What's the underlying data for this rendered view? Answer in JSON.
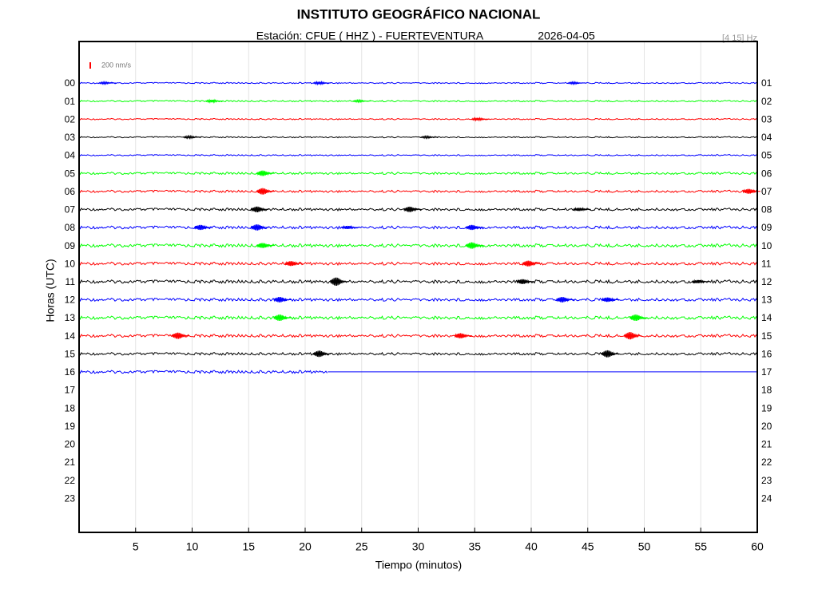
{
  "chart_data": {
    "type": "helicorder",
    "title": "INSTITUTO GEOGRÁFICO NACIONAL",
    "station": "Estación:  CFUE ( HHZ ) - FUERTEVENTURA",
    "date": "2026-04-05",
    "filter": "[4 15] Hz",
    "scale_label": "200 nm/s",
    "scale_value": 200,
    "scale_color": "#ff0000",
    "xlabel": "Tiempo (minutos)",
    "ylabel": "Horas (UTC)",
    "xlim": [
      0,
      60
    ],
    "xticks": [
      5,
      10,
      15,
      20,
      25,
      30,
      35,
      40,
      45,
      50,
      55,
      60
    ],
    "grid": true,
    "hours_left": [
      "00",
      "01",
      "02",
      "03",
      "04",
      "05",
      "06",
      "07",
      "08",
      "09",
      "10",
      "11",
      "12",
      "13",
      "14",
      "15",
      "16",
      "17",
      "18",
      "19",
      "20",
      "21",
      "22",
      "23"
    ],
    "hours_right": [
      "01",
      "02",
      "03",
      "04",
      "05",
      "06",
      "07",
      "08",
      "09",
      "10",
      "11",
      "12",
      "13",
      "14",
      "15",
      "16",
      "17",
      "18",
      "19",
      "20",
      "21",
      "22",
      "23",
      "24"
    ],
    "traces": [
      {
        "color": "#0000ff",
        "end": 60,
        "noise": 40,
        "bursts": [
          {
            "minute": 2.5,
            "amplitude": 60
          },
          {
            "minute": 21.5,
            "amplitude": 80
          },
          {
            "minute": 44,
            "amplitude": 60
          }
        ]
      },
      {
        "color": "#00ff00",
        "end": 60,
        "noise": 45,
        "bursts": [
          {
            "minute": 12,
            "amplitude": 80
          },
          {
            "minute": 25,
            "amplitude": 60
          }
        ]
      },
      {
        "color": "#ff0000",
        "end": 60,
        "noise": 40,
        "bursts": [
          {
            "minute": 35.5,
            "amplitude": 80
          }
        ]
      },
      {
        "color": "#000000",
        "end": 60,
        "noise": 40,
        "bursts": [
          {
            "minute": 10,
            "amplitude": 70
          },
          {
            "minute": 31,
            "amplitude": 60
          }
        ]
      },
      {
        "color": "#0000ff",
        "end": 60,
        "noise": 40,
        "bursts": []
      },
      {
        "color": "#00ff00",
        "end": 60,
        "noise": 70,
        "bursts": [
          {
            "minute": 16.5,
            "amplitude": 170
          }
        ]
      },
      {
        "color": "#ff0000",
        "end": 60,
        "noise": 70,
        "bursts": [
          {
            "minute": 16.5,
            "amplitude": 200
          },
          {
            "minute": 59.5,
            "amplitude": 150
          }
        ]
      },
      {
        "color": "#000000",
        "end": 60,
        "noise": 80,
        "bursts": [
          {
            "minute": 16,
            "amplitude": 180
          },
          {
            "minute": 29.5,
            "amplitude": 170
          },
          {
            "minute": 44.5,
            "amplitude": 100
          }
        ]
      },
      {
        "color": "#0000ff",
        "end": 60,
        "noise": 90,
        "bursts": [
          {
            "minute": 11,
            "amplitude": 160
          },
          {
            "minute": 16,
            "amplitude": 190
          },
          {
            "minute": 24,
            "amplitude": 100
          },
          {
            "minute": 35,
            "amplitude": 160
          }
        ]
      },
      {
        "color": "#00ff00",
        "end": 60,
        "noise": 100,
        "bursts": [
          {
            "minute": 16.5,
            "amplitude": 160
          },
          {
            "minute": 35,
            "amplitude": 200
          }
        ]
      },
      {
        "color": "#ff0000",
        "end": 60,
        "noise": 90,
        "bursts": [
          {
            "minute": 19,
            "amplitude": 150
          },
          {
            "minute": 40,
            "amplitude": 180
          }
        ]
      },
      {
        "color": "#000000",
        "end": 60,
        "noise": 100,
        "bursts": [
          {
            "minute": 23,
            "amplitude": 260
          },
          {
            "minute": 39.5,
            "amplitude": 150
          },
          {
            "minute": 55,
            "amplitude": 100
          }
        ]
      },
      {
        "color": "#0000ff",
        "end": 60,
        "noise": 90,
        "bursts": [
          {
            "minute": 18,
            "amplitude": 170
          },
          {
            "minute": 43,
            "amplitude": 170
          },
          {
            "minute": 47,
            "amplitude": 140
          }
        ]
      },
      {
        "color": "#00ff00",
        "end": 60,
        "noise": 100,
        "bursts": [
          {
            "minute": 18,
            "amplitude": 200
          },
          {
            "minute": 49.5,
            "amplitude": 200
          }
        ]
      },
      {
        "color": "#ff0000",
        "end": 60,
        "noise": 90,
        "bursts": [
          {
            "minute": 9,
            "amplitude": 200
          },
          {
            "minute": 34,
            "amplitude": 160
          },
          {
            "minute": 49,
            "amplitude": 230
          }
        ]
      },
      {
        "color": "#000000",
        "end": 60,
        "noise": 80,
        "bursts": [
          {
            "minute": 21.5,
            "amplitude": 200
          },
          {
            "minute": 47,
            "amplitude": 220
          }
        ]
      },
      {
        "color": "#0000ff",
        "end": 22,
        "noise": 90,
        "bursts": []
      }
    ]
  }
}
